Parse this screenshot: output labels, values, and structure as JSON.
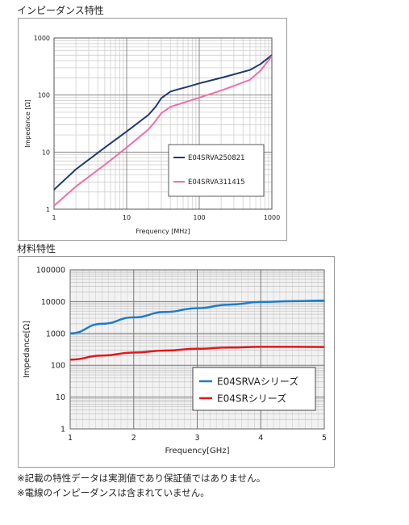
{
  "section1_title": "インピーダンス特性",
  "section2_title": "材料特性",
  "notes": [
    "※記載の特性データは実測値であり保証値ではありません。",
    "※電線のインピーダンスは含まれていません。"
  ],
  "chart_data": [
    {
      "type": "line",
      "x_scale": "log",
      "y_scale": "log",
      "xlabel": "Frequency [MHz]",
      "ylabel": "Impedance [Ω]",
      "xlim": [
        1,
        1000
      ],
      "ylim": [
        1,
        1000
      ],
      "x_ticks": [
        "1",
        "10",
        "100",
        "1000"
      ],
      "y_ticks": [
        "1",
        "10",
        "100",
        "1000"
      ],
      "grid": true,
      "legend_position": "bottom-right",
      "series": [
        {
          "name": "E04SRVA250821",
          "color": "#1f3a6e",
          "x": [
            1,
            2,
            5,
            10,
            20,
            25,
            30,
            40,
            50,
            70,
            100,
            200,
            300,
            500,
            700,
            1000
          ],
          "y": [
            2.2,
            5,
            12,
            23,
            45,
            62,
            88,
            115,
            125,
            140,
            160,
            200,
            230,
            275,
            350,
            500
          ]
        },
        {
          "name": "E04SRVA311415",
          "color": "#f06eaa",
          "x": [
            1,
            2,
            5,
            10,
            20,
            25,
            30,
            40,
            50,
            70,
            100,
            200,
            300,
            500,
            700,
            1000
          ],
          "y": [
            1.15,
            2.5,
            6,
            12,
            25,
            35,
            48,
            62,
            68,
            78,
            90,
            120,
            145,
            185,
            270,
            480
          ]
        }
      ]
    },
    {
      "type": "line",
      "x_scale": "linear",
      "y_scale": "log",
      "xlabel": "Frequency[GHz]",
      "ylabel": "Impedance[Ω]",
      "xlim": [
        1,
        5
      ],
      "ylim": [
        1,
        100000
      ],
      "x_ticks": [
        "1",
        "2",
        "3",
        "4",
        "5"
      ],
      "y_ticks": [
        "1",
        "10",
        "100",
        "1000",
        "10000",
        "100000"
      ],
      "grid": true,
      "legend_position": "bottom-right",
      "series": [
        {
          "name": "E04SRVAシリーズ",
          "color": "#1e7cc7",
          "x": [
            1,
            1.5,
            2,
            2.5,
            3,
            3.5,
            4,
            4.5,
            5
          ],
          "y": [
            1000,
            2000,
            3200,
            4700,
            6200,
            8000,
            9700,
            10300,
            10800
          ]
        },
        {
          "name": "E04SRシリーズ",
          "color": "#e8151d",
          "x": [
            1,
            1.5,
            2,
            2.5,
            3,
            3.5,
            4,
            4.5,
            5
          ],
          "y": [
            150,
            200,
            250,
            290,
            330,
            360,
            380,
            380,
            375
          ]
        }
      ]
    }
  ]
}
